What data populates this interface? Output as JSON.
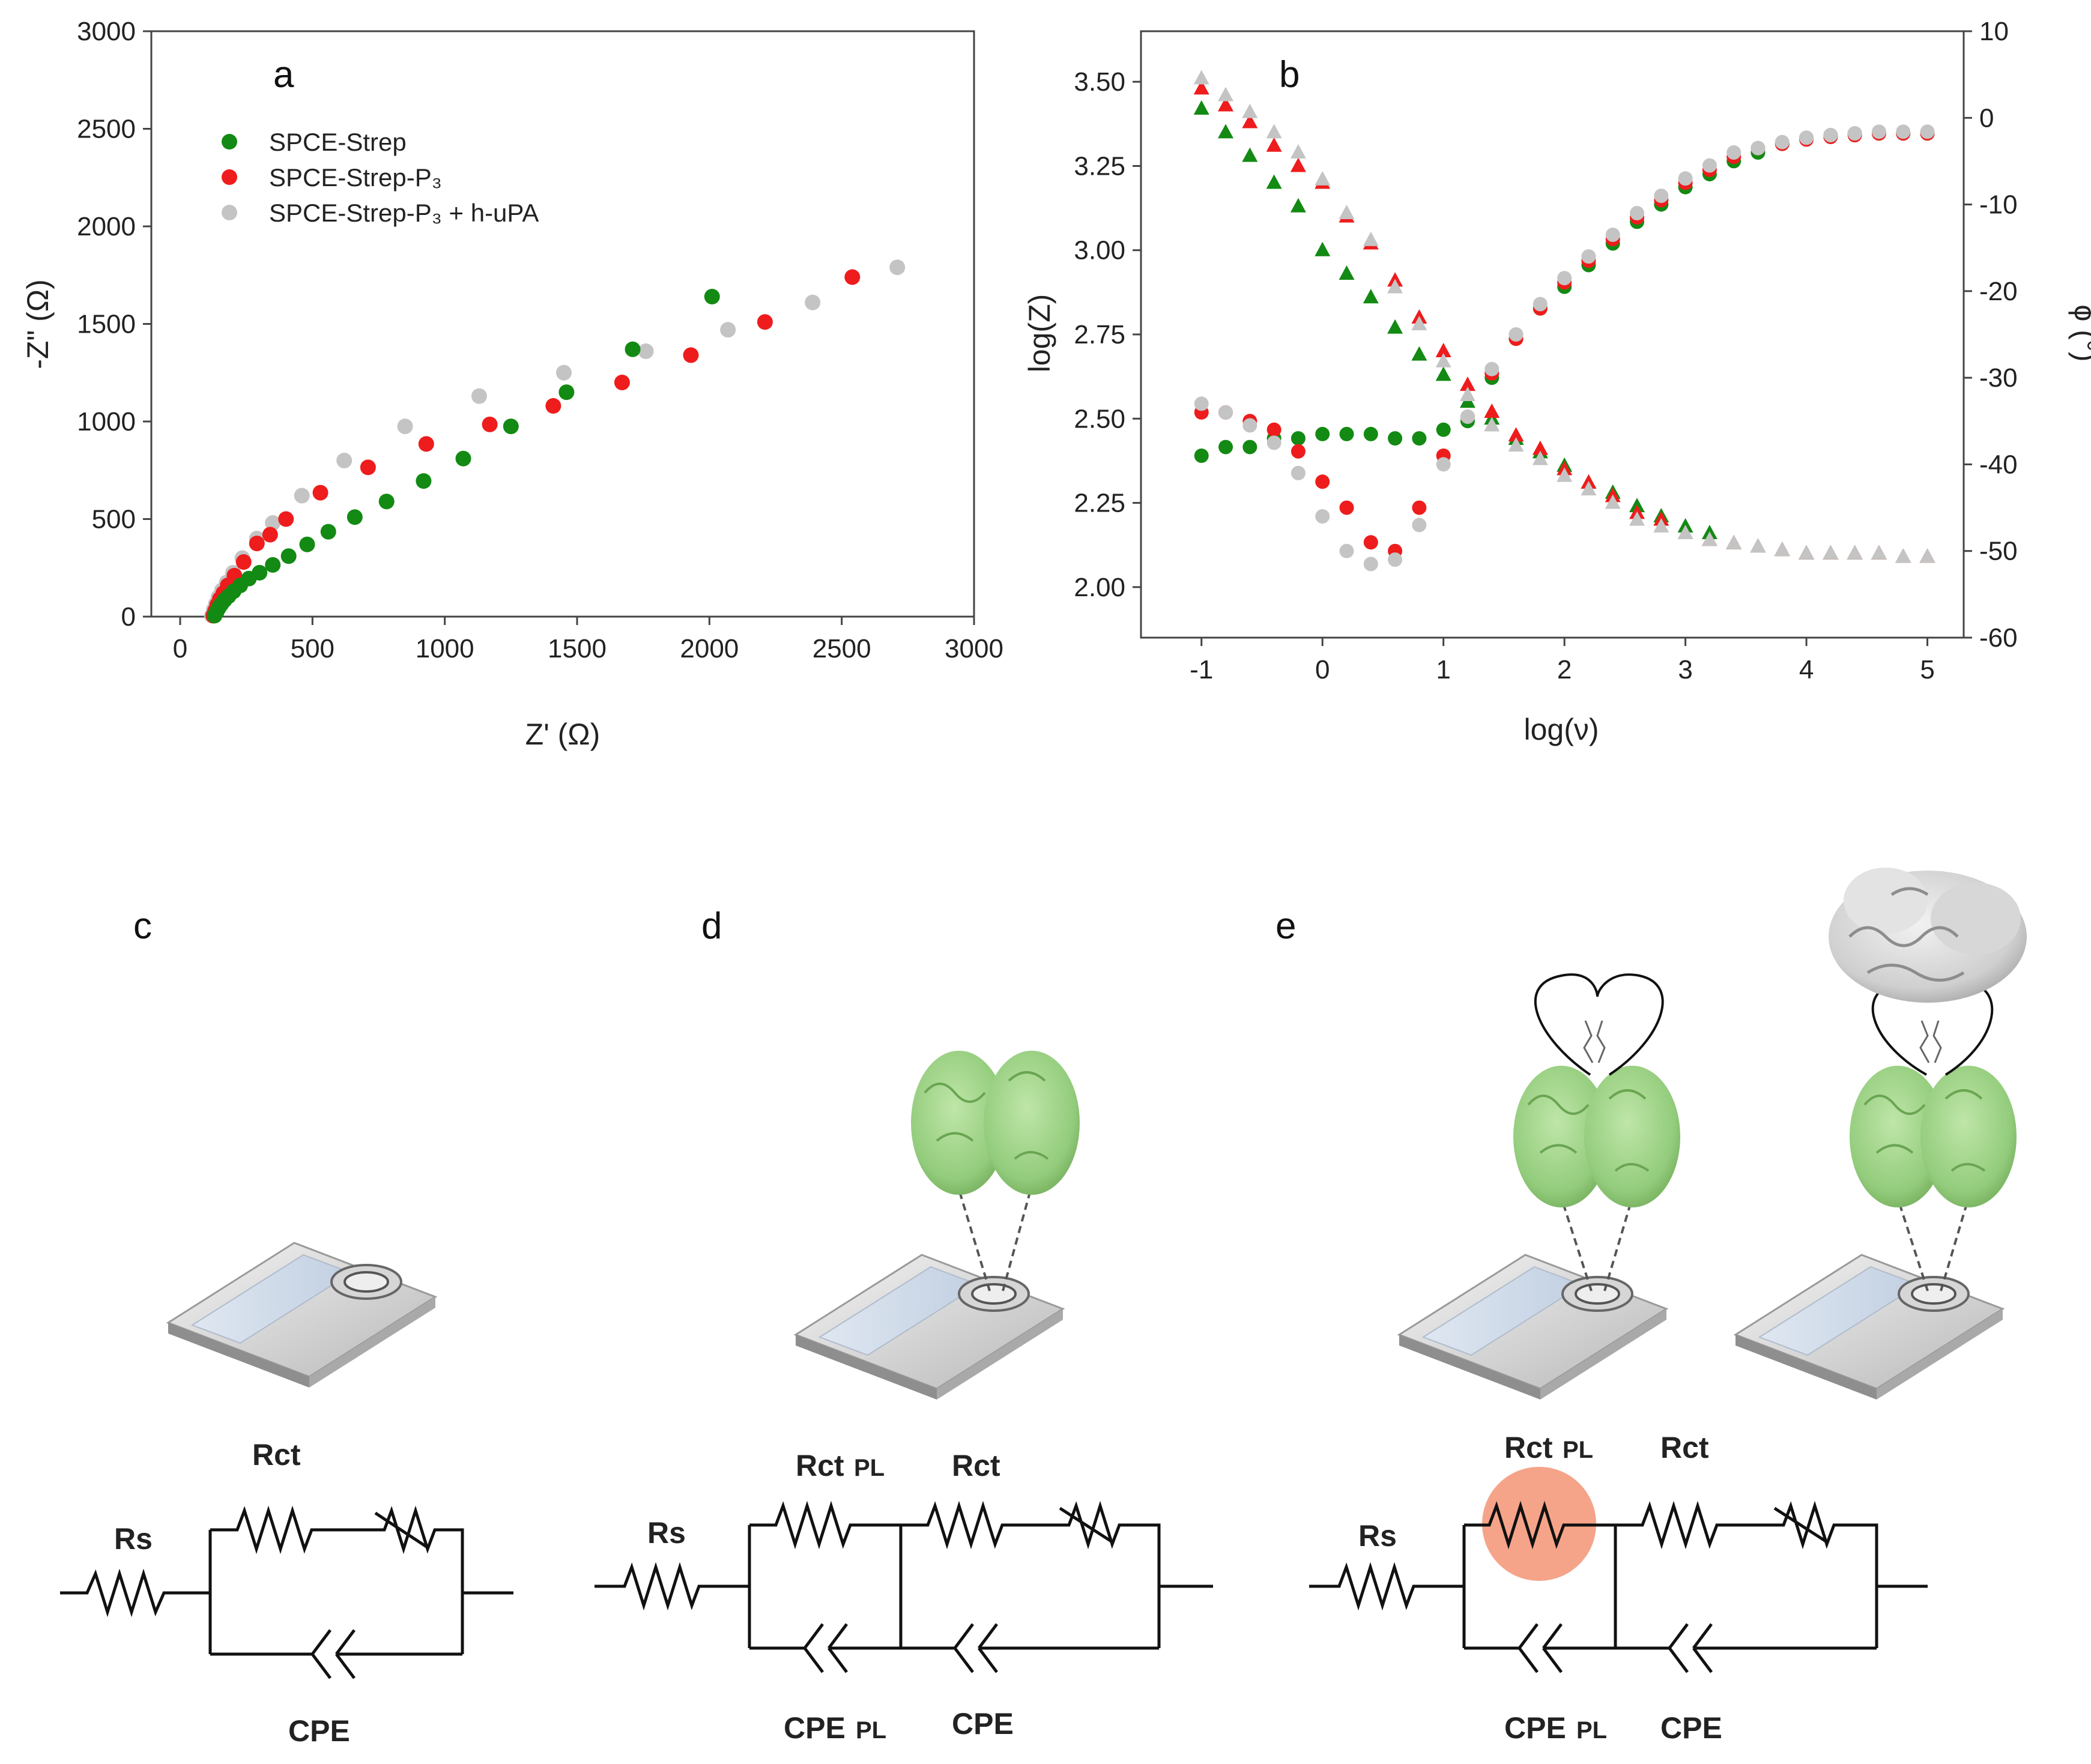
{
  "colors": {
    "strep": "#138a13",
    "p3": "#ee1c1c",
    "uPA": "#c4c4c4",
    "axis": "#444444",
    "protein": "#9fd68a",
    "protein_dark": "#5f9e4c",
    "highlight": "#f5a48a"
  },
  "panels": {
    "a": "a",
    "b": "b",
    "c": "c",
    "d": "d",
    "e": "e"
  },
  "chart_data": [
    {
      "type": "scatter",
      "panel": "a",
      "title": "",
      "xlabel": "Z' (Ω)",
      "ylabel": "-Z\" (Ω)",
      "xlim": [
        0,
        3000
      ],
      "ylim": [
        0,
        3000
      ],
      "xticks": [
        "0",
        "500",
        "1000",
        "1500",
        "2000",
        "2500",
        "3000"
      ],
      "yticks": [
        "0",
        "500",
        "1000",
        "1500",
        "2000",
        "2500",
        "3000"
      ],
      "legend": [
        "SPCE-Strep",
        "SPCE-Strep-P₃",
        "SPCE-Strep-P₃ + h-uPA"
      ],
      "legend_position": "top-left",
      "series": [
        {
          "name": "SPCE-Strep",
          "color_key": "strep",
          "x": [
            130,
            138,
            146,
            156,
            168,
            183,
            202,
            227,
            260,
            300,
            350,
            410,
            480,
            560,
            660,
            780,
            920,
            1070,
            1250,
            1460,
            1710,
            2010
          ],
          "y": [
            5,
            25,
            45,
            65,
            85,
            105,
            130,
            160,
            195,
            225,
            265,
            310,
            370,
            435,
            510,
            590,
            695,
            810,
            975,
            1150,
            1370,
            1640
          ]
        },
        {
          "name": "SPCE-Strep-P3",
          "color_key": "p3",
          "x": [
            125,
            132,
            140,
            150,
            163,
            180,
            205,
            240,
            290,
            340,
            400,
            530,
            710,
            930,
            1170,
            1410,
            1670,
            1930,
            2210,
            2540
          ],
          "y": [
            5,
            30,
            60,
            90,
            120,
            160,
            210,
            280,
            375,
            420,
            500,
            635,
            765,
            885,
            985,
            1080,
            1200,
            1340,
            1510,
            1740
          ]
        },
        {
          "name": "SPCE-Strep-P3 + h-uPA",
          "color_key": "uPA",
          "x": [
            120,
            127,
            135,
            145,
            158,
            176,
            200,
            235,
            290,
            350,
            460,
            620,
            850,
            1130,
            1450,
            1760,
            2070,
            2390,
            2710
          ],
          "y": [
            5,
            35,
            65,
            100,
            135,
            175,
            225,
            300,
            400,
            480,
            620,
            800,
            975,
            1130,
            1250,
            1360,
            1470,
            1610,
            1790
          ]
        }
      ]
    },
    {
      "type": "scatter",
      "panel": "b",
      "title": "",
      "xlabel": "log(ν)",
      "ylabel": "log(Z)",
      "y2label": "ϕ (°)",
      "xlim": [
        -1.5,
        5.3
      ],
      "ylim": [
        1.85,
        3.65
      ],
      "y2lim": [
        -60,
        10
      ],
      "xticks": [
        "-1",
        "0",
        "1",
        "2",
        "3",
        "4",
        "5"
      ],
      "yticks": [
        "2.00",
        "2.25",
        "2.50",
        "2.75",
        "3.00",
        "3.25",
        "3.50"
      ],
      "y2ticks": [
        "-60",
        "-50",
        "-40",
        "-30",
        "-20",
        "-10",
        "0",
        "10"
      ],
      "x": [
        -1.0,
        -0.8,
        -0.6,
        -0.4,
        -0.2,
        0.0,
        0.2,
        0.4,
        0.6,
        0.8,
        1.0,
        1.2,
        1.4,
        1.6,
        1.8,
        2.0,
        2.2,
        2.4,
        2.6,
        2.8,
        3.0,
        3.2,
        3.4,
        3.6,
        3.8,
        4.0,
        4.2,
        4.4,
        4.6,
        4.8,
        5.0
      ],
      "series": [
        {
          "name": "SPCE-Strep log(Z)",
          "marker": "triangle",
          "axis": "left",
          "color_key": "strep",
          "values": [
            3.42,
            3.35,
            3.28,
            3.2,
            3.13,
            3.0,
            2.93,
            2.86,
            2.77,
            2.69,
            2.63,
            2.55,
            2.5,
            2.44,
            2.4,
            2.36,
            2.31,
            2.28,
            2.24,
            2.21,
            2.18,
            2.16,
            2.13,
            2.12,
            2.11,
            2.1,
            2.1,
            2.1,
            2.1,
            2.09,
            2.09
          ]
        },
        {
          "name": "SPCE-Strep-P3 log(Z)",
          "marker": "triangle",
          "axis": "left",
          "color_key": "p3",
          "values": [
            3.48,
            3.43,
            3.38,
            3.31,
            3.25,
            3.2,
            3.1,
            3.02,
            2.91,
            2.8,
            2.7,
            2.6,
            2.52,
            2.45,
            2.41,
            2.35,
            2.31,
            2.27,
            2.22,
            2.2,
            2.16,
            2.14,
            2.13,
            2.12,
            2.11,
            2.1,
            2.1,
            2.1,
            2.1,
            2.09,
            2.09
          ]
        },
        {
          "name": "SPCE-Strep-P3 + h-uPA log(Z)",
          "marker": "triangle",
          "axis": "left",
          "color_key": "uPA",
          "values": [
            3.51,
            3.46,
            3.41,
            3.35,
            3.29,
            3.21,
            3.11,
            3.03,
            2.89,
            2.78,
            2.67,
            2.57,
            2.48,
            2.42,
            2.38,
            2.33,
            2.29,
            2.25,
            2.2,
            2.18,
            2.16,
            2.14,
            2.13,
            2.12,
            2.11,
            2.1,
            2.1,
            2.1,
            2.1,
            2.09,
            2.09
          ]
        },
        {
          "name": "SPCE-Strep ϕ",
          "marker": "circle",
          "axis": "right",
          "color_key": "strep",
          "values": [
            -39,
            -38,
            -38,
            -37,
            -37,
            -36.5,
            -36.5,
            -36.5,
            -37,
            -37,
            -36,
            -35,
            -30,
            -25.5,
            -22,
            -19.5,
            -17,
            -14.5,
            -12,
            -10,
            -8,
            -6.5,
            -5,
            -4,
            -3,
            -2.3,
            -2,
            -1.8,
            -1.8,
            -1.8,
            -1.8
          ]
        },
        {
          "name": "SPCE-Strep-P3 ϕ",
          "marker": "circle",
          "axis": "right",
          "color_key": "p3",
          "values": [
            -34,
            -34,
            -35,
            -36,
            -38.5,
            -42,
            -45,
            -49,
            -50,
            -45,
            -39,
            -34.5,
            -29.5,
            -25.5,
            -22,
            -19,
            -16.5,
            -14,
            -11.5,
            -9.5,
            -7.5,
            -6,
            -4.5,
            -3.5,
            -3,
            -2.5,
            -2.2,
            -2,
            -1.8,
            -1.8,
            -1.8
          ]
        },
        {
          "name": "SPCE-Strep-P3 + h-uPA ϕ",
          "marker": "circle",
          "axis": "right",
          "color_key": "uPA",
          "values": [
            -33,
            -34,
            -35.5,
            -37.5,
            -41,
            -46,
            -50,
            -51.5,
            -51,
            -47,
            -40,
            -34.5,
            -29,
            -25,
            -21.5,
            -18.5,
            -16,
            -13.5,
            -11,
            -9,
            -7,
            -5.5,
            -4,
            -3.5,
            -2.8,
            -2.3,
            -2,
            -1.8,
            -1.6,
            -1.6,
            -1.6
          ]
        }
      ]
    }
  ],
  "circuits": {
    "c": {
      "rs": "Rs",
      "rct": "Rct",
      "cpe": "CPE"
    },
    "d": {
      "rs": "Rs",
      "rct_pl_main": "Rct",
      "rct_pl_sub": "PL",
      "rct": "Rct",
      "cpe_pl_main": "CPE",
      "cpe_pl_sub": "PL",
      "cpe": "CPE"
    },
    "e": {
      "rs": "Rs",
      "rct_pl_main": "Rct",
      "rct_pl_sub": "PL",
      "rct": "Rct",
      "cpe_pl_main": "CPE",
      "cpe_pl_sub": "PL",
      "cpe": "CPE"
    }
  }
}
